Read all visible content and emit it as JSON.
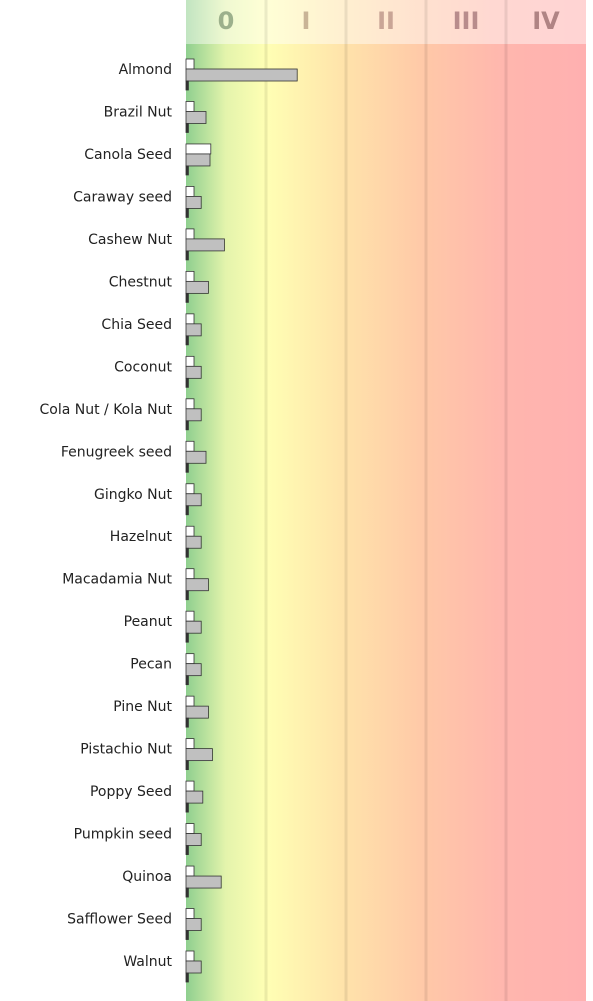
{
  "chart_data": {
    "type": "bar",
    "orientation": "horizontal",
    "categories": [
      "Almond",
      "Brazil Nut",
      "Canola Seed",
      "Caraway seed",
      "Cashew Nut",
      "Chestnut",
      "Chia Seed",
      "Coconut",
      "Cola Nut / Kola Nut",
      "Fenugreek seed",
      "Gingko Nut",
      "Hazelnut",
      "Macadamia Nut",
      "Peanut",
      "Pecan",
      "Pine Nut",
      "Pistachio Nut",
      "Poppy Seed",
      "Pumpkin seed",
      "Quinoa",
      "Safflower Seed",
      "Walnut"
    ],
    "series": [
      {
        "color": "#ffffff",
        "values": [
          0.1,
          0.1,
          0.31,
          0.1,
          0.1,
          0.1,
          0.1,
          0.1,
          0.1,
          0.1,
          0.1,
          0.1,
          0.1,
          0.1,
          0.1,
          0.1,
          0.1,
          0.1,
          0.1,
          0.1,
          0.1,
          0.1
        ]
      },
      {
        "color": "#c0c0c0",
        "values": [
          1.39,
          0.25,
          0.3,
          0.19,
          0.48,
          0.28,
          0.19,
          0.19,
          0.19,
          0.25,
          0.19,
          0.19,
          0.28,
          0.19,
          0.19,
          0.28,
          0.33,
          0.21,
          0.19,
          0.44,
          0.19,
          0.19
        ]
      },
      {
        "color": "#333333",
        "values": [
          0.03,
          0.03,
          0.03,
          0.03,
          0.03,
          0.03,
          0.03,
          0.03,
          0.03,
          0.03,
          0.03,
          0.03,
          0.03,
          0.03,
          0.03,
          0.03,
          0.03,
          0.03,
          0.03,
          0.03,
          0.03,
          0.03
        ]
      }
    ],
    "xlim": [
      0,
      5
    ],
    "xticks": [
      {
        "value": 0.5,
        "label": "0"
      },
      {
        "value": 1.5,
        "label": "I"
      },
      {
        "value": 2.5,
        "label": "II"
      },
      {
        "value": 3.5,
        "label": "III"
      },
      {
        "value": 4.5,
        "label": "IV"
      }
    ],
    "tick_colors": [
      "#9cb08c",
      "#c9b496",
      "#c9a596",
      "#b88c8c",
      "#b08484"
    ]
  }
}
